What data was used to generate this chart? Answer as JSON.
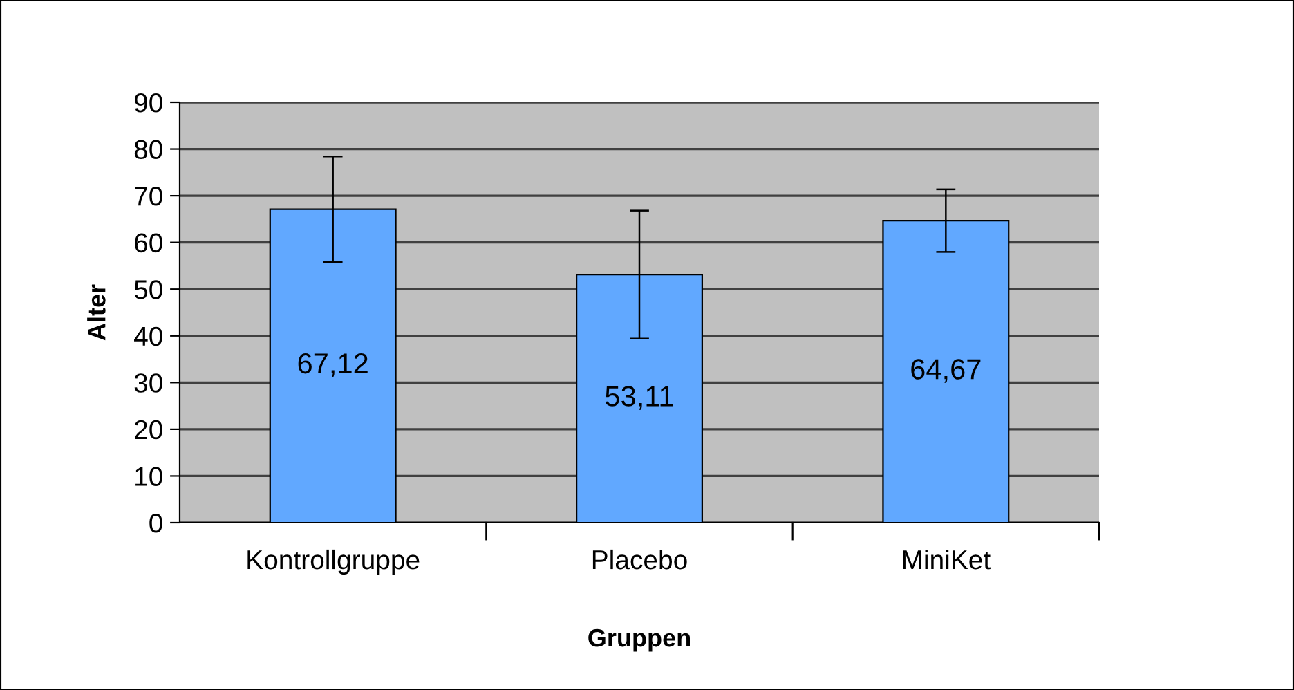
{
  "chart_data": {
    "type": "bar",
    "xlabel": "Gruppen",
    "ylabel": "Alter",
    "categories": [
      "Kontrollgruppe",
      "Placebo",
      "MiniKet"
    ],
    "values": [
      67.12,
      53.11,
      64.67
    ],
    "errors": [
      11.3,
      13.7,
      6.7
    ],
    "value_labels": [
      "67,12",
      "53,11",
      "64,67"
    ],
    "color": "#61a8ff",
    "ylim": [
      0,
      90
    ],
    "yticks": [
      0,
      10,
      20,
      30,
      40,
      50,
      60,
      70,
      80,
      90
    ],
    "grid": "y",
    "legend": false
  }
}
